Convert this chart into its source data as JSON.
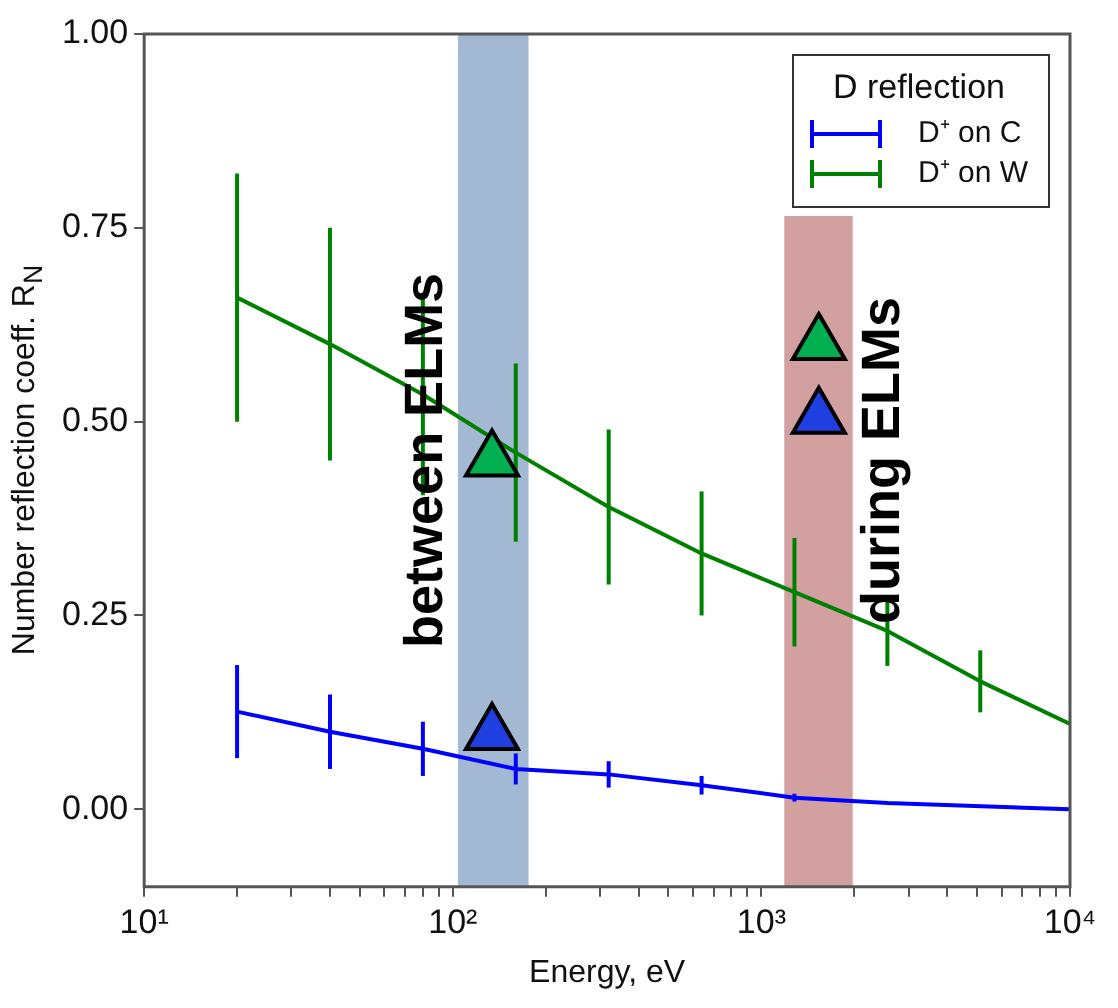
{
  "chart_data": {
    "type": "line",
    "xlabel": "Energy, eV",
    "ylabel": "Number reflection coeff. R$_{N}$",
    "legend_title": "D reflection",
    "legend": "top right",
    "log": "x",
    "grid": false,
    "xlim": [
      10,
      10000
    ],
    "xticks": [
      {
        "value": 10,
        "label": "10¹"
      },
      {
        "value": 20,
        "label": null
      },
      {
        "value": 30,
        "label": null
      },
      {
        "value": 40,
        "label": null
      },
      {
        "value": 50,
        "label": null
      },
      {
        "value": 60,
        "label": null
      },
      {
        "value": 70,
        "label": null
      },
      {
        "value": 80,
        "label": null
      },
      {
        "value": 90,
        "label": null
      },
      {
        "value": 100,
        "label": "10²"
      },
      {
        "value": 200,
        "label": null
      },
      {
        "value": 300,
        "label": null
      },
      {
        "value": 400,
        "label": null
      },
      {
        "value": 500,
        "label": null
      },
      {
        "value": 600,
        "label": null
      },
      {
        "value": 700,
        "label": null
      },
      {
        "value": 800,
        "label": null
      },
      {
        "value": 900,
        "label": null
      },
      {
        "value": 1000,
        "label": "10³"
      },
      {
        "value": 2000,
        "label": null
      },
      {
        "value": 3000,
        "label": null
      },
      {
        "value": 4000,
        "label": null
      },
      {
        "value": 5000,
        "label": null
      },
      {
        "value": 6000,
        "label": null
      },
      {
        "value": 7000,
        "label": null
      },
      {
        "value": 8000,
        "label": null
      },
      {
        "value": 9000,
        "label": null
      },
      {
        "value": 10000,
        "label": "10⁴"
      }
    ],
    "ylim": [
      -0.1,
      1.0
    ],
    "yticks": [
      {
        "value": 0,
        "label": "0.00"
      },
      {
        "value": 0.25,
        "label": "0.25"
      },
      {
        "value": 0.5,
        "label": "0.50"
      },
      {
        "value": 0.75,
        "label": "0.75"
      },
      {
        "value": 1.0,
        "label": "1.00"
      }
    ],
    "bands": [
      {
        "axis": "x",
        "from": 104,
        "to": 176,
        "label": "between ELMs",
        "color": "#a3b8d2"
      },
      {
        "axis": "x",
        "from": 1186,
        "to": 1977,
        "label": "during ELMs",
        "color": "#d2a0a0"
      }
    ],
    "series": [
      {
        "name": "D⁺ on C",
        "marker": "none",
        "color": "#0000ff",
        "x": [
          20,
          40,
          80,
          160,
          320,
          640,
          1280,
          2560,
          10000
        ],
        "values": [
          0.126,
          0.1,
          0.078,
          0.052,
          0.045,
          0.031,
          0.015,
          0.008,
          0.0
        ],
        "errors": [
          0.06,
          0.048,
          0.035,
          0.02,
          0.017,
          0.012,
          0.005,
          null,
          null
        ]
      },
      {
        "name": "D⁺ on W",
        "marker": "none",
        "color": "#008000",
        "x": [
          20,
          40,
          80,
          160,
          320,
          640,
          1280,
          2560,
          5120,
          10000
        ],
        "values": [
          0.66,
          0.6,
          0.535,
          0.46,
          0.39,
          0.33,
          0.28,
          0.23,
          0.165,
          0.11
        ],
        "errors": [
          0.16,
          0.15,
          0.13,
          0.115,
          0.1,
          0.08,
          0.07,
          0.045,
          0.04,
          null
        ]
      },
      {
        "type": "scatter",
        "marker": "triangle",
        "color": "#00b050",
        "x": [
          134,
          1535
        ],
        "values": [
          0.45,
          0.6
        ]
      },
      {
        "type": "scatter",
        "marker": "triangle",
        "color": "#1f3fe0",
        "x": [
          134,
          1535
        ],
        "values": [
          0.097,
          0.505
        ]
      }
    ]
  }
}
